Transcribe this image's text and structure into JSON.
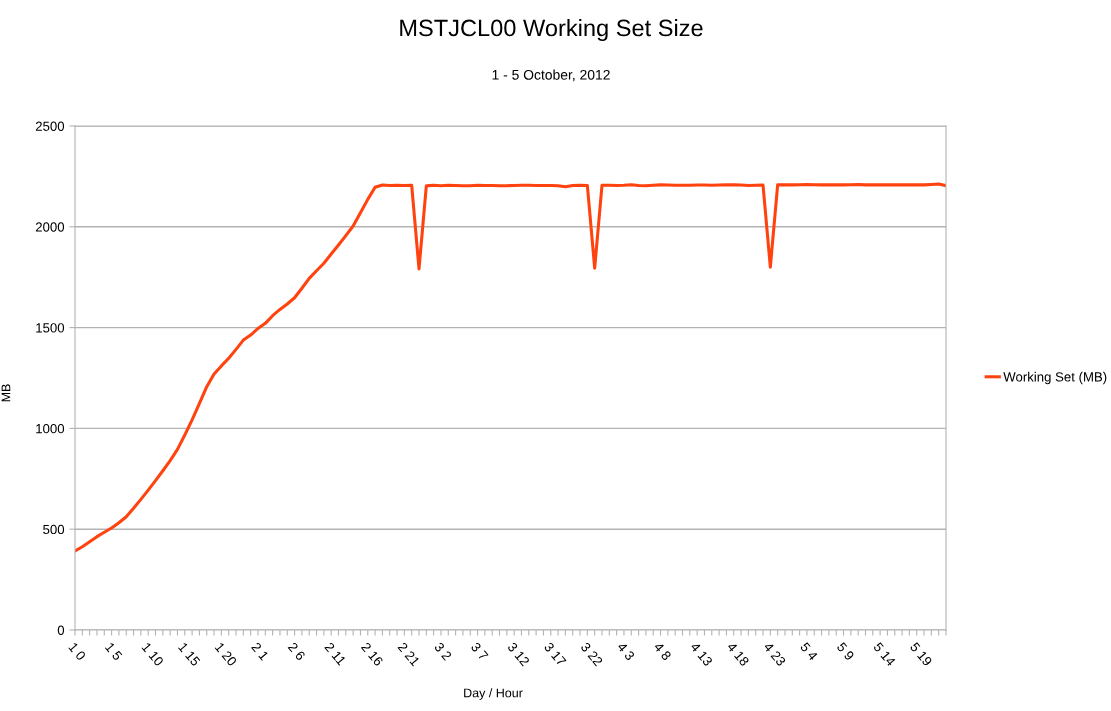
{
  "chart_data": {
    "type": "line",
    "title": "MSTJCL00 Working Set Size",
    "subtitle": "1 - 5 October, 2012",
    "xlabel": "Day / Hour",
    "ylabel": "MB",
    "categories": [
      "1 0",
      null,
      null,
      null,
      null,
      "1 5",
      null,
      null,
      null,
      null,
      "1 10",
      null,
      null,
      null,
      null,
      "1 15",
      null,
      null,
      null,
      null,
      "1 20",
      null,
      null,
      null,
      null,
      "2 1",
      null,
      null,
      null,
      null,
      "2 6",
      null,
      null,
      null,
      null,
      "2 11",
      null,
      null,
      null,
      null,
      "2 16",
      null,
      null,
      null,
      null,
      "2 21",
      null,
      null,
      null,
      null,
      "3 2",
      null,
      null,
      null,
      null,
      "3 7",
      null,
      null,
      null,
      null,
      "3 12",
      null,
      null,
      null,
      null,
      "3 17",
      null,
      null,
      null,
      null,
      "3 22",
      null,
      null,
      null,
      null,
      "4 3",
      null,
      null,
      null,
      null,
      "4 8",
      null,
      null,
      null,
      null,
      "4 13",
      null,
      null,
      null,
      null,
      "4 18",
      null,
      null,
      null,
      null,
      "4 23",
      null,
      null,
      null,
      null,
      "5 4",
      null,
      null,
      null,
      null,
      "5 9",
      null,
      null,
      null,
      null,
      "5 14",
      null,
      null,
      null,
      null,
      "5 19",
      null,
      null,
      null,
      null
    ],
    "series": [
      {
        "name": "Working Set (MB)",
        "color": "#ff420e",
        "values": [
          392,
          413,
          438,
          463,
          485,
          506,
          532,
          562,
          604,
          648,
          694,
          741,
          790,
          840,
          896,
          967,
          1042,
          1124,
          1207,
          1270,
          1310,
          1348,
          1392,
          1438,
          1463,
          1496,
          1521,
          1559,
          1590,
          1617,
          1648,
          1695,
          1744,
          1782,
          1819,
          1865,
          1910,
          1956,
          2004,
          2070,
          2136,
          2196,
          2207,
          2205,
          2206,
          2205,
          2206,
          1791,
          2203,
          2206,
          2204,
          2206,
          2205,
          2204,
          2204,
          2206,
          2205,
          2205,
          2204,
          2204,
          2205,
          2206,
          2206,
          2205,
          2205,
          2205,
          2204,
          2199,
          2205,
          2206,
          2205,
          1795,
          2206,
          2206,
          2205,
          2206,
          2209,
          2205,
          2204,
          2206,
          2208,
          2207,
          2206,
          2206,
          2206,
          2207,
          2207,
          2206,
          2207,
          2208,
          2208,
          2207,
          2205,
          2206,
          2207,
          1800,
          2208,
          2208,
          2208,
          2209,
          2210,
          2209,
          2208,
          2209,
          2208,
          2208,
          2209,
          2210,
          2208,
          2209,
          2208,
          2208,
          2209,
          2208,
          2208,
          2209,
          2208,
          2210,
          2212,
          2204
        ]
      }
    ],
    "ylim": [
      0,
      2500
    ],
    "yticks": [
      0,
      500,
      1000,
      1500,
      2000,
      2500
    ],
    "grid": "y",
    "legend": "right",
    "marker": "none",
    "line_style": "solid"
  }
}
